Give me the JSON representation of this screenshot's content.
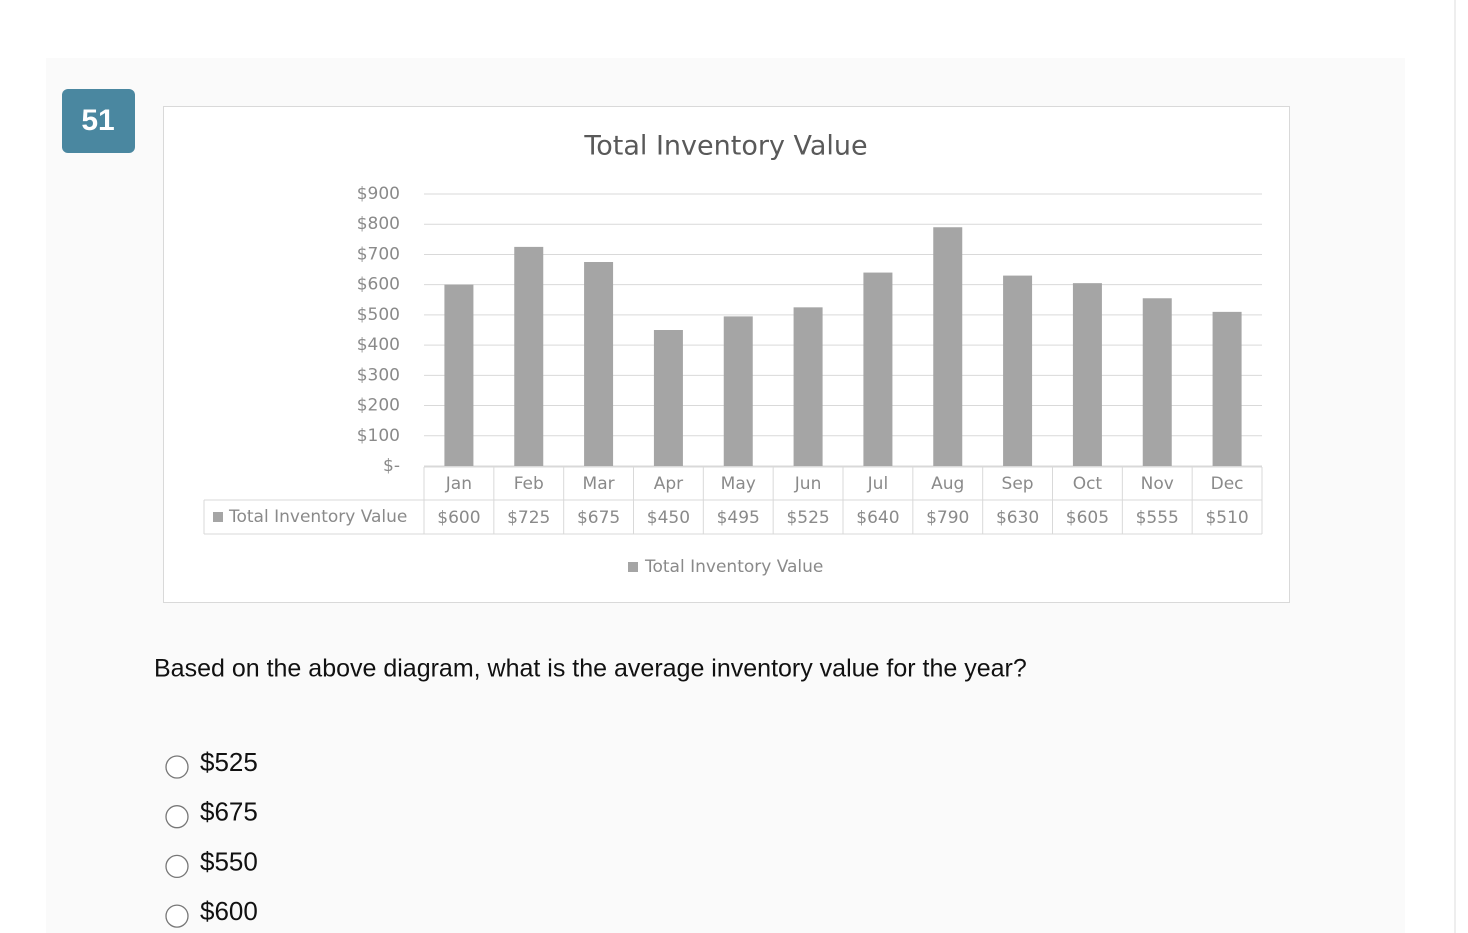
{
  "question": {
    "number": "51",
    "text": "Based on the above diagram, what is the average inventory value for the year?",
    "options": [
      "$525",
      "$675",
      "$550",
      "$600"
    ]
  },
  "chart_data": {
    "type": "bar",
    "title": "Total Inventory Value",
    "categories": [
      "Jan",
      "Feb",
      "Mar",
      "Apr",
      "May",
      "Jun",
      "Jul",
      "Aug",
      "Sep",
      "Oct",
      "Nov",
      "Dec"
    ],
    "series": [
      {
        "name": "Total Inventory Value",
        "color": "#a5a5a5",
        "values": [
          600,
          725,
          675,
          450,
          495,
          525,
          640,
          790,
          630,
          605,
          555,
          510
        ],
        "value_labels": [
          "$600",
          "$725",
          "$675",
          "$450",
          "$495",
          "$525",
          "$640",
          "$790",
          "$630",
          "$605",
          "$555",
          "$510"
        ]
      }
    ],
    "ylim": [
      0,
      900
    ],
    "yticks": [
      {
        "value": 0,
        "label": "$-"
      },
      {
        "value": 100,
        "label": "$100"
      },
      {
        "value": 200,
        "label": "$200"
      },
      {
        "value": 300,
        "label": "$300"
      },
      {
        "value": 400,
        "label": "$400"
      },
      {
        "value": 500,
        "label": "$500"
      },
      {
        "value": 600,
        "label": "$600"
      },
      {
        "value": 700,
        "label": "$700"
      },
      {
        "value": 800,
        "label": "$800"
      },
      {
        "value": 900,
        "label": "$900"
      }
    ],
    "grid": true
  }
}
